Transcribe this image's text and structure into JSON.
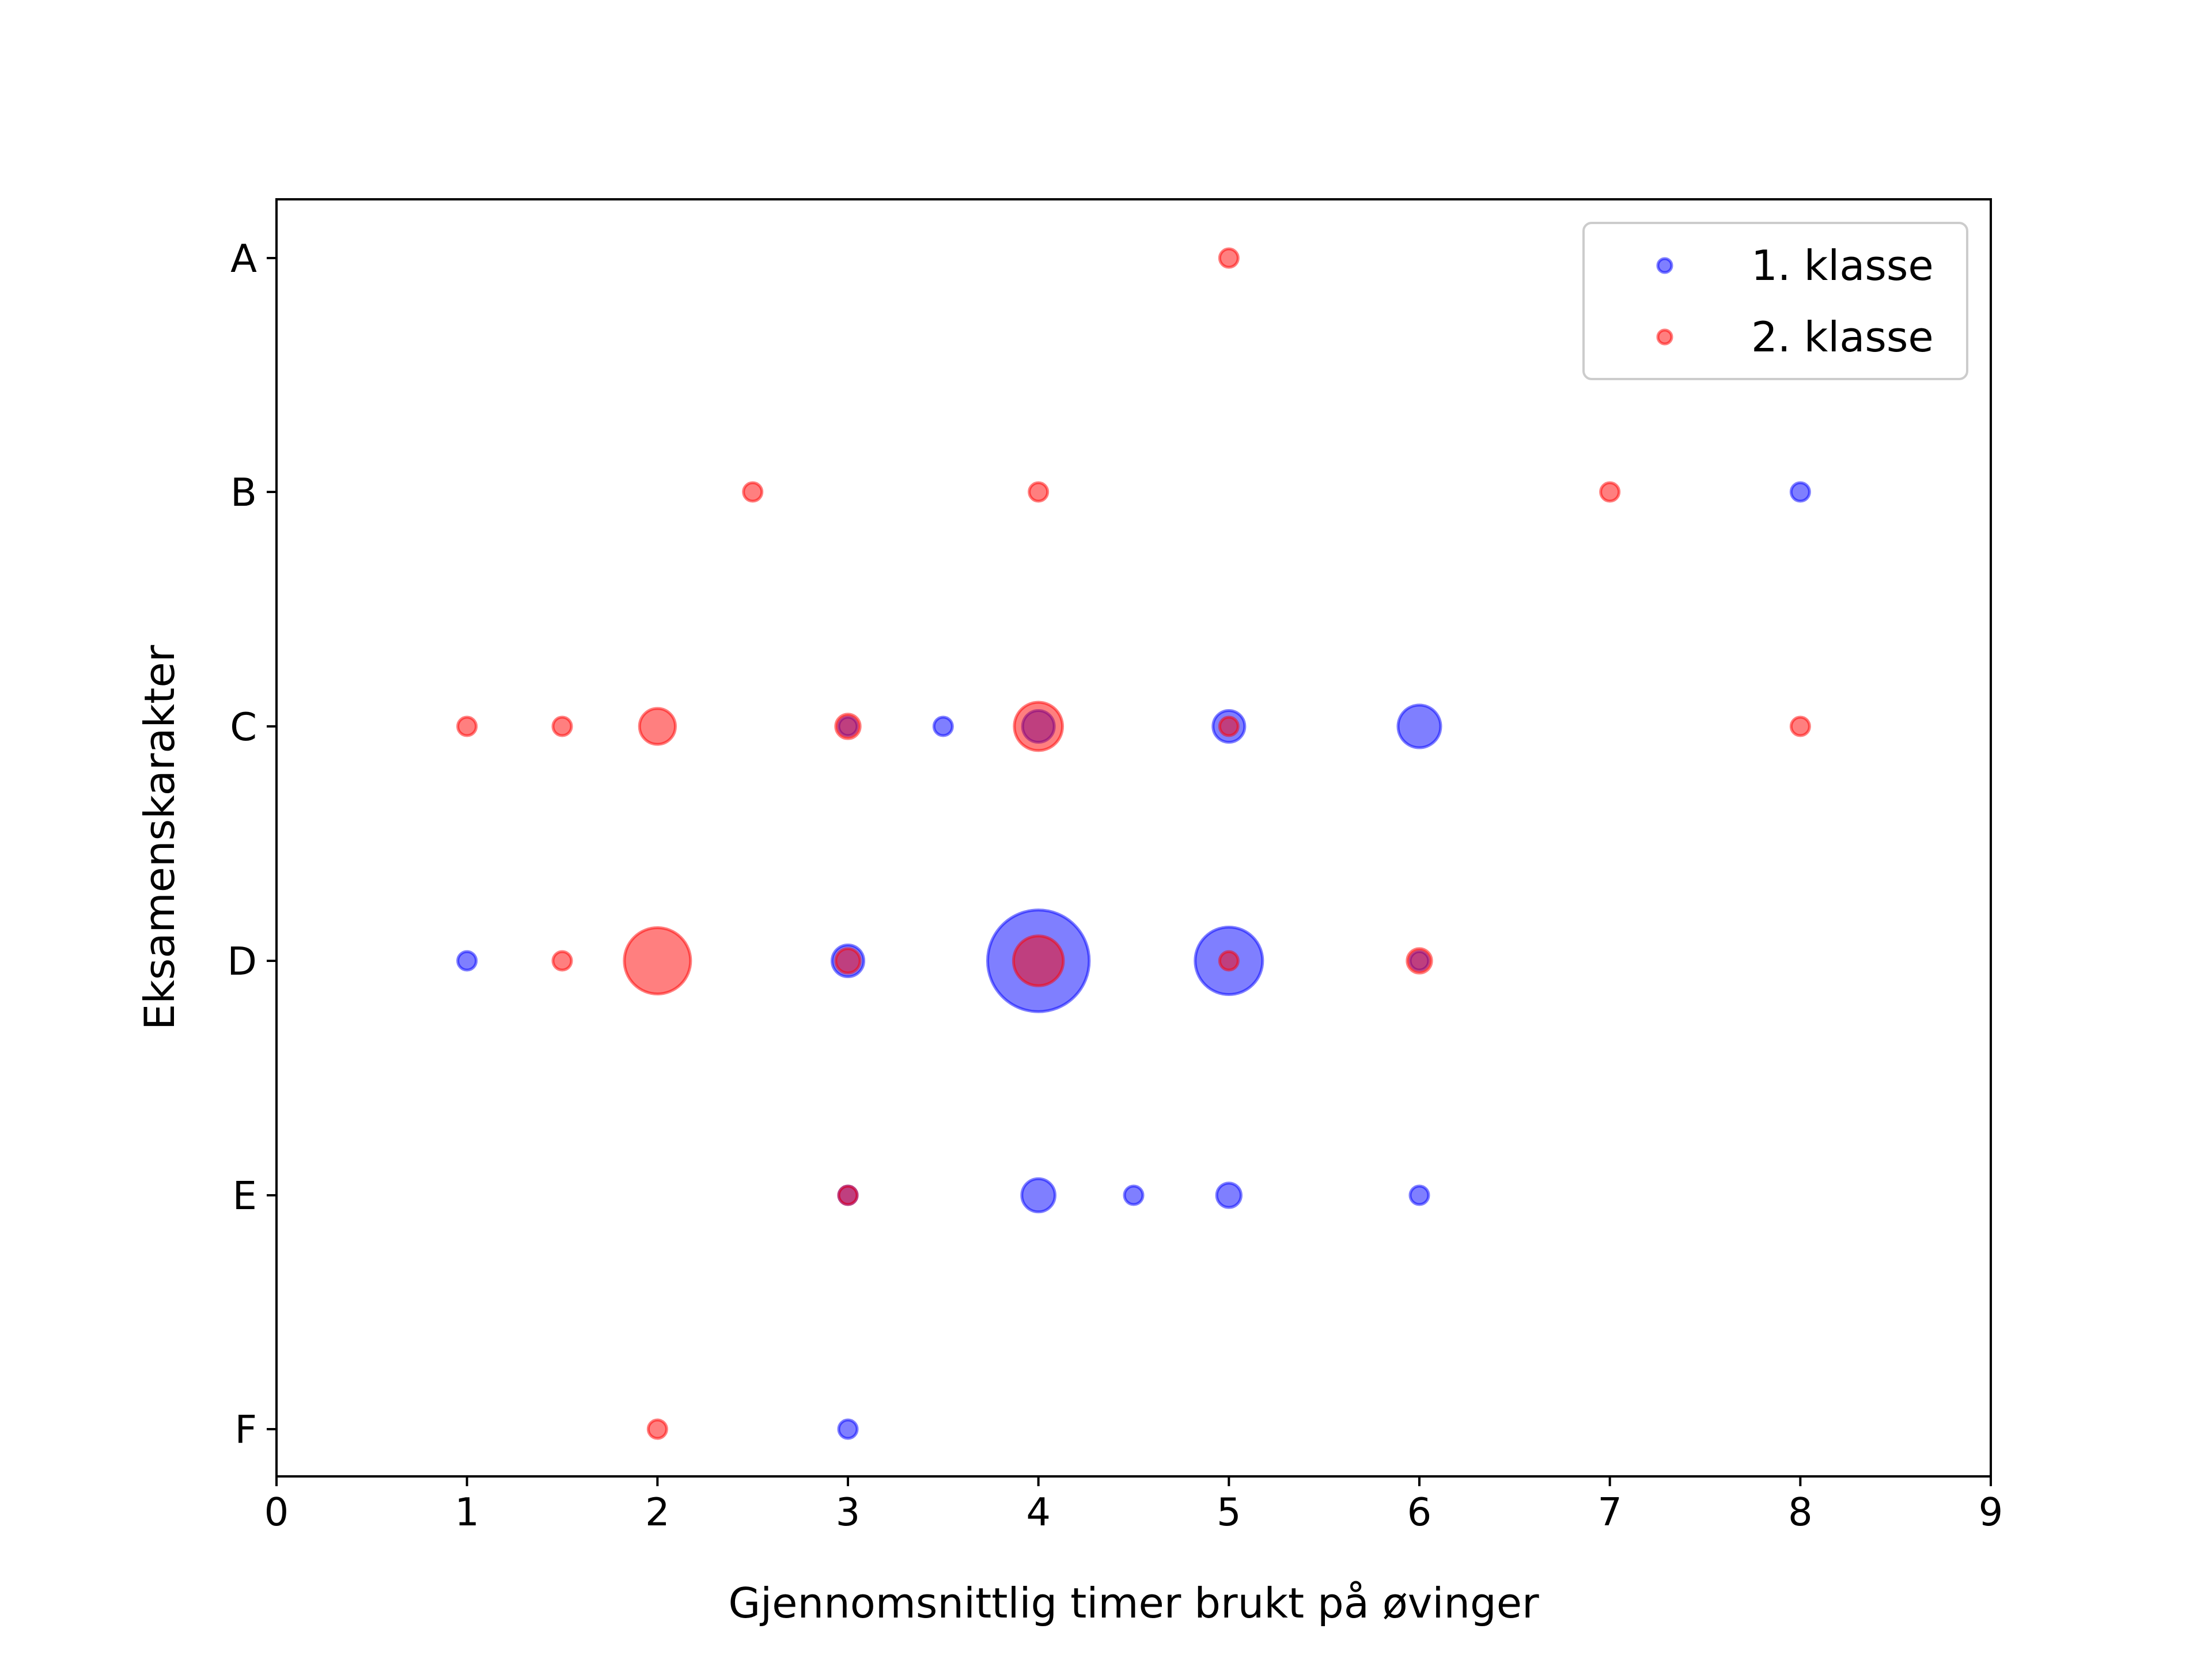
{
  "chart_data": {
    "type": "scatter",
    "title": "",
    "xlabel": "Gjennomsnittlig timer brukt på øvinger",
    "ylabel": "Eksamenskarakter",
    "xlim": [
      0,
      9
    ],
    "xticks": [
      0,
      1,
      2,
      3,
      4,
      5,
      6,
      7,
      8,
      9
    ],
    "xtick_labels": [
      "0",
      "1",
      "2",
      "3",
      "4",
      "5",
      "6",
      "7",
      "8",
      "9"
    ],
    "ytick_labels": [
      "A",
      "B",
      "C",
      "D",
      "E",
      "F"
    ],
    "grid": false,
    "legend_position": "top-right",
    "marker_size_meaning": "number of students",
    "series": [
      {
        "name": "1. klasse",
        "color": "#0000ff",
        "points": [
          {
            "x": 8,
            "y": "B",
            "count": 1
          },
          {
            "x": 3,
            "y": "C",
            "count": 1
          },
          {
            "x": 3.5,
            "y": "C",
            "count": 1
          },
          {
            "x": 4,
            "y": "C",
            "count": 7
          },
          {
            "x": 5,
            "y": "C",
            "count": 7
          },
          {
            "x": 6,
            "y": "C",
            "count": 16
          },
          {
            "x": 1,
            "y": "D",
            "count": 1
          },
          {
            "x": 3,
            "y": "D",
            "count": 7
          },
          {
            "x": 4,
            "y": "D",
            "count": 128
          },
          {
            "x": 5,
            "y": "D",
            "count": 50
          },
          {
            "x": 6,
            "y": "D",
            "count": 1
          },
          {
            "x": 3,
            "y": "E",
            "count": 1
          },
          {
            "x": 4,
            "y": "E",
            "count": 8
          },
          {
            "x": 4.5,
            "y": "E",
            "count": 1
          },
          {
            "x": 5,
            "y": "E",
            "count": 3
          },
          {
            "x": 6,
            "y": "E",
            "count": 1
          },
          {
            "x": 3,
            "y": "F",
            "count": 1
          }
        ]
      },
      {
        "name": "2. klasse",
        "color": "#ff0000",
        "points": [
          {
            "x": 5,
            "y": "A",
            "count": 1
          },
          {
            "x": 2.5,
            "y": "B",
            "count": 1
          },
          {
            "x": 4,
            "y": "B",
            "count": 1
          },
          {
            "x": 7,
            "y": "B",
            "count": 1
          },
          {
            "x": 1,
            "y": "C",
            "count": 1
          },
          {
            "x": 1.5,
            "y": "C",
            "count": 1
          },
          {
            "x": 2,
            "y": "C",
            "count": 10
          },
          {
            "x": 3,
            "y": "C",
            "count": 3
          },
          {
            "x": 4,
            "y": "C",
            "count": 22
          },
          {
            "x": 5,
            "y": "C",
            "count": 1
          },
          {
            "x": 8,
            "y": "C",
            "count": 1
          },
          {
            "x": 1.5,
            "y": "D",
            "count": 1
          },
          {
            "x": 2,
            "y": "D",
            "count": 48
          },
          {
            "x": 3,
            "y": "D",
            "count": 3
          },
          {
            "x": 4,
            "y": "D",
            "count": 24
          },
          {
            "x": 5,
            "y": "D",
            "count": 1
          },
          {
            "x": 6,
            "y": "D",
            "count": 3
          },
          {
            "x": 3,
            "y": "E",
            "count": 1
          },
          {
            "x": 2,
            "y": "F",
            "count": 1
          }
        ]
      }
    ]
  }
}
